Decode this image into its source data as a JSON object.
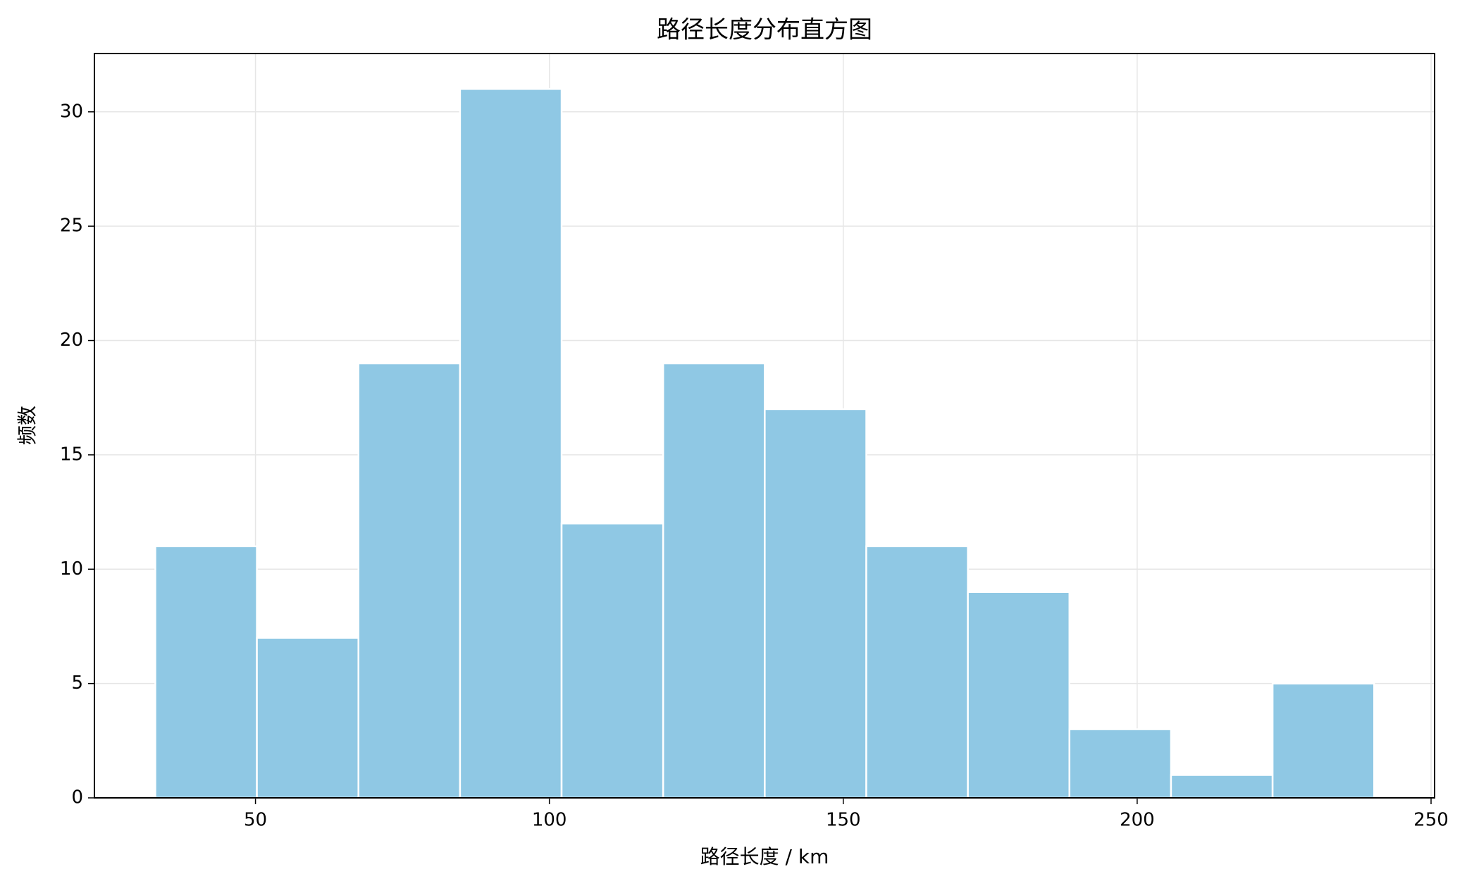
{
  "chart_data": {
    "type": "histogram",
    "title": "路径长度分布直方图",
    "xlabel": "路径长度 / km",
    "ylabel": "频数",
    "bins": [
      32.96,
      50.24,
      67.52,
      84.8,
      102.08,
      119.36,
      136.64,
      153.92,
      171.2,
      188.48,
      205.76,
      223.04,
      240.32
    ],
    "counts": [
      11,
      7,
      19,
      31,
      12,
      19,
      17,
      11,
      9,
      3,
      1,
      5
    ],
    "color": "#8fc8e4",
    "xlim": [
      22.6,
      250.6
    ],
    "ylim": [
      0,
      32.55
    ],
    "xticks": [
      50,
      100,
      150,
      200,
      250
    ],
    "yticks": [
      0,
      5,
      10,
      15,
      20,
      25,
      30
    ],
    "grid": true
  }
}
